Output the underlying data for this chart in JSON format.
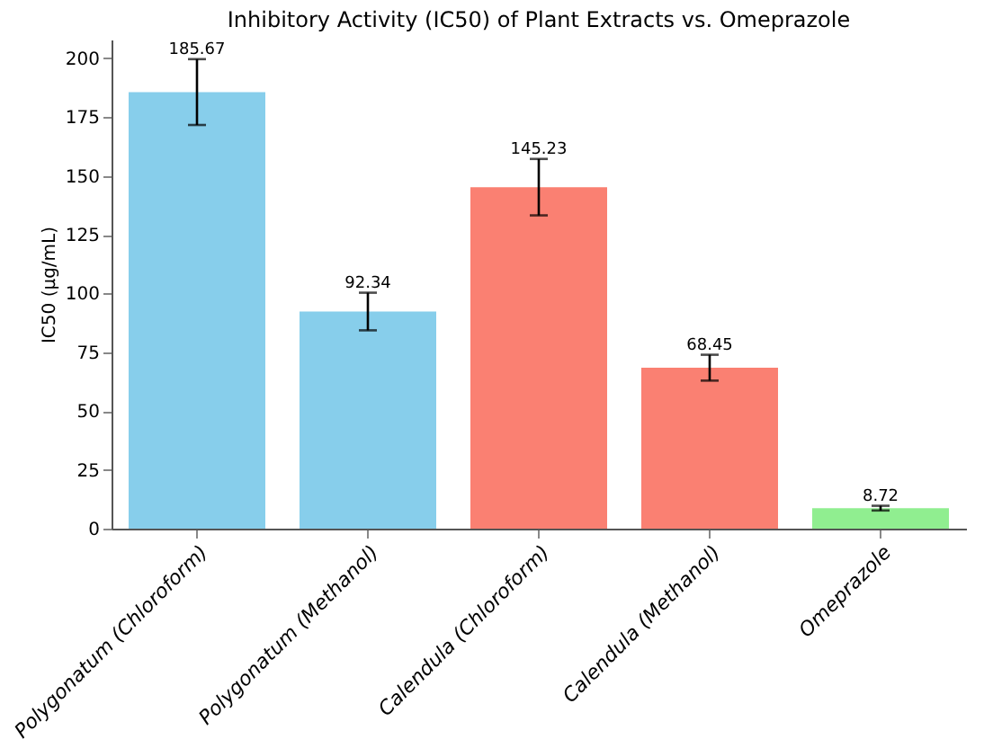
{
  "chart_data": {
    "type": "bar",
    "title": "Inhibitory Activity (IC50) of Plant Extracts vs. Omeprazole",
    "ylabel": "IC50 (µg/mL)",
    "categories": [
      "Polygonatum (Chloroform)",
      "Polygonatum (Methanol)",
      "Calendula (Chloroform)",
      "Calendula (Methanol)",
      "Omeprazole"
    ],
    "values": [
      185.67,
      92.34,
      145.23,
      68.45,
      8.72
    ],
    "colors": [
      "#87ceeb",
      "#87ceeb",
      "#fa8072",
      "#fa8072",
      "#90ee90"
    ],
    "errors": [
      14,
      8,
      12,
      5.5,
      1
    ],
    "ylim": [
      0,
      208
    ],
    "yticks": [
      0,
      25,
      50,
      75,
      100,
      125,
      150,
      175,
      200
    ],
    "data_labels": true,
    "grid": false
  }
}
